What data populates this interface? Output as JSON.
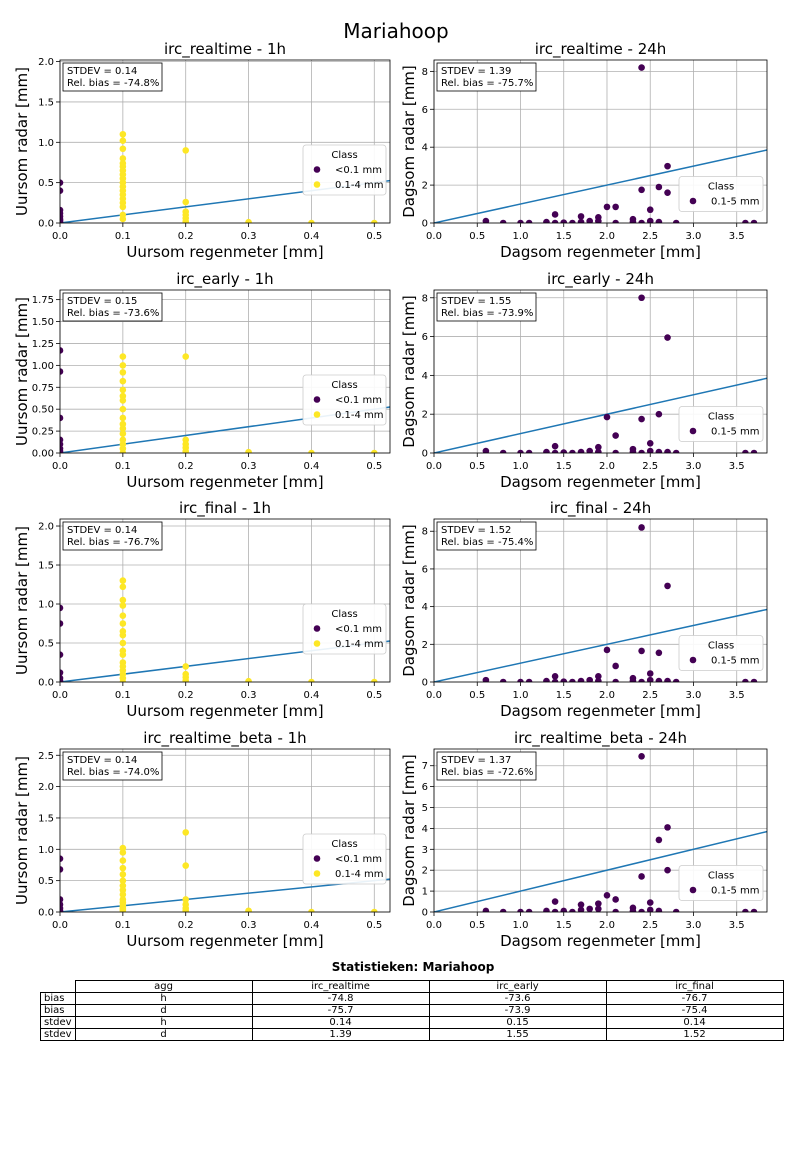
{
  "suptitle": "Mariahoop",
  "colors": {
    "low": "#440154",
    "high": "#fde725",
    "line": "#1f77b4",
    "grid": "#b0b0b0"
  },
  "chart_data": [
    {
      "type": "scatter",
      "title": "irc_realtime - 1h",
      "xlabel": "Uursom regenmeter [mm]",
      "ylabel": "Uursom radar [mm]",
      "xlim": [
        0,
        0.525
      ],
      "ylim": [
        0,
        2.02
      ],
      "xticks": [
        0.0,
        0.1,
        0.2,
        0.3,
        0.4,
        0.5
      ],
      "yticks": [
        0.0,
        0.5,
        1.0,
        1.5,
        2.0
      ],
      "tick_decimals": 1,
      "stats": [
        "STDEV = 0.14",
        "Rel. bias = -74.8%"
      ],
      "legend": {
        "title": "Class",
        "entries": [
          {
            "label": "<0.1 mm",
            "color": "#440154"
          },
          {
            "label": "0.1-4 mm",
            "color": "#fde725"
          }
        ],
        "position": "center-right"
      },
      "fit_line": [
        [
          0,
          0
        ],
        [
          0.525,
          0.525
        ]
      ],
      "series": [
        {
          "name": "<0.1 mm",
          "color": "#440154",
          "x": [
            0,
            0,
            0,
            0,
            0,
            0,
            0,
            0,
            0
          ],
          "y": [
            0.5,
            0.4,
            0.16,
            0.12,
            0.08,
            0.05,
            0.03,
            0.01,
            0.0
          ]
        },
        {
          "name": "0.1-4 mm",
          "color": "#fde725",
          "x": [
            0.1,
            0.1,
            0.1,
            0.1,
            0.1,
            0.1,
            0.1,
            0.1,
            0.1,
            0.1,
            0.1,
            0.1,
            0.1,
            0.1,
            0.1,
            0.1,
            0.1,
            0.1,
            0.2,
            0.2,
            0.2,
            0.2,
            0.2,
            0.2,
            0.3,
            0.4,
            0.5
          ],
          "y": [
            1.1,
            1.02,
            0.92,
            0.8,
            0.74,
            0.7,
            0.65,
            0.6,
            0.55,
            0.5,
            0.45,
            0.4,
            0.35,
            0.3,
            0.25,
            0.2,
            0.1,
            0.05,
            0.9,
            0.26,
            0.14,
            0.1,
            0.06,
            0.02,
            0.01,
            0.0,
            0.0
          ]
        }
      ]
    },
    {
      "type": "scatter",
      "title": "irc_realtime - 24h",
      "xlabel": "Dagsom regenmeter [mm]",
      "ylabel": "Dagsom radar [mm]",
      "xlim": [
        0,
        3.85
      ],
      "ylim": [
        0,
        8.6
      ],
      "xticks": [
        0.0,
        0.5,
        1.0,
        1.5,
        2.0,
        2.5,
        3.0,
        3.5
      ],
      "yticks": [
        0,
        2,
        4,
        6,
        8
      ],
      "tick_decimals": 1,
      "ytick_decimals": 0,
      "stats": [
        "STDEV = 1.39",
        "Rel. bias = -75.7%"
      ],
      "legend": {
        "title": "Class",
        "entries": [
          {
            "label": "0.1-5 mm",
            "color": "#440154"
          }
        ],
        "position": "center-right"
      },
      "fit_line": [
        [
          0,
          0
        ],
        [
          3.85,
          3.85
        ]
      ],
      "series": [
        {
          "name": "0.1-5 mm",
          "color": "#440154",
          "x": [
            0.6,
            0.8,
            1.0,
            1.1,
            1.3,
            1.4,
            1.4,
            1.5,
            1.6,
            1.7,
            1.7,
            1.8,
            1.9,
            1.9,
            2.0,
            2.1,
            2.1,
            2.3,
            2.3,
            2.4,
            2.4,
            2.4,
            2.5,
            2.5,
            2.6,
            2.6,
            2.7,
            2.7,
            2.8,
            3.6,
            3.7
          ],
          "y": [
            0.1,
            0.0,
            0.0,
            0.0,
            0.05,
            0.45,
            0.0,
            0.02,
            0.0,
            0.35,
            0.05,
            0.1,
            0.3,
            0.1,
            0.85,
            0.85,
            0.0,
            0.2,
            0.05,
            8.2,
            1.75,
            0.0,
            0.7,
            0.1,
            1.9,
            0.05,
            3.0,
            1.6,
            0.0,
            0.0,
            0.0
          ]
        }
      ]
    },
    {
      "type": "scatter",
      "title": "irc_early - 1h",
      "xlabel": "Uursom regenmeter [mm]",
      "ylabel": "Uursom radar [mm]",
      "xlim": [
        0,
        0.525
      ],
      "ylim": [
        0,
        1.86
      ],
      "xticks": [
        0.0,
        0.1,
        0.2,
        0.3,
        0.4,
        0.5
      ],
      "yticks": [
        0.0,
        0.25,
        0.5,
        0.75,
        1.0,
        1.25,
        1.5,
        1.75
      ],
      "tick_decimals": 1,
      "ytick_decimals": 2,
      "stats": [
        "STDEV = 0.15",
        "Rel. bias = -73.6%"
      ],
      "legend": {
        "title": "Class",
        "entries": [
          {
            "label": "<0.1 mm",
            "color": "#440154"
          },
          {
            "label": "0.1-4 mm",
            "color": "#fde725"
          }
        ],
        "position": "center-right"
      },
      "fit_line": [
        [
          0,
          0
        ],
        [
          0.525,
          0.525
        ]
      ],
      "series": [
        {
          "name": "<0.1 mm",
          "color": "#440154",
          "x": [
            0,
            0,
            0,
            0,
            0,
            0,
            0,
            0
          ],
          "y": [
            1.17,
            0.93,
            0.4,
            0.15,
            0.1,
            0.05,
            0.02,
            0.0
          ]
        },
        {
          "name": "0.1-4 mm",
          "color": "#fde725",
          "x": [
            0.1,
            0.1,
            0.1,
            0.1,
            0.1,
            0.1,
            0.1,
            0.1,
            0.1,
            0.1,
            0.1,
            0.1,
            0.1,
            0.1,
            0.1,
            0.1,
            0.2,
            0.2,
            0.2,
            0.2,
            0.2,
            0.3,
            0.4,
            0.5
          ],
          "y": [
            1.1,
            1.0,
            0.92,
            0.82,
            0.72,
            0.65,
            0.6,
            0.5,
            0.4,
            0.33,
            0.28,
            0.22,
            0.15,
            0.1,
            0.05,
            0.0,
            1.1,
            0.15,
            0.1,
            0.06,
            0.02,
            0.01,
            0.0,
            0.0
          ]
        }
      ]
    },
    {
      "type": "scatter",
      "title": "irc_early - 24h",
      "xlabel": "Dagsom regenmeter [mm]",
      "ylabel": "Dagsom radar [mm]",
      "xlim": [
        0,
        3.85
      ],
      "ylim": [
        0,
        8.4
      ],
      "xticks": [
        0.0,
        0.5,
        1.0,
        1.5,
        2.0,
        2.5,
        3.0,
        3.5
      ],
      "yticks": [
        0,
        2,
        4,
        6,
        8
      ],
      "tick_decimals": 1,
      "ytick_decimals": 0,
      "stats": [
        "STDEV = 1.55",
        "Rel. bias = -73.9%"
      ],
      "legend": {
        "title": "Class",
        "entries": [
          {
            "label": "0.1-5 mm",
            "color": "#440154"
          }
        ],
        "position": "center-right"
      },
      "fit_line": [
        [
          0,
          0
        ],
        [
          3.85,
          3.85
        ]
      ],
      "series": [
        {
          "name": "0.1-5 mm",
          "color": "#440154",
          "x": [
            0.6,
            0.8,
            1.0,
            1.1,
            1.3,
            1.4,
            1.4,
            1.5,
            1.6,
            1.7,
            1.8,
            1.9,
            1.9,
            2.0,
            2.1,
            2.1,
            2.3,
            2.3,
            2.4,
            2.4,
            2.4,
            2.5,
            2.5,
            2.6,
            2.6,
            2.7,
            2.7,
            2.8,
            3.6,
            3.7
          ],
          "y": [
            0.1,
            0.0,
            0.0,
            0.0,
            0.05,
            0.35,
            0.0,
            0.02,
            0.0,
            0.05,
            0.1,
            0.3,
            0.05,
            1.85,
            0.9,
            0.0,
            0.2,
            0.05,
            8.0,
            1.75,
            0.0,
            0.5,
            0.1,
            2.0,
            0.05,
            5.95,
            0.05,
            0.0,
            0.0,
            0.0
          ]
        }
      ]
    },
    {
      "type": "scatter",
      "title": "irc_final - 1h",
      "xlabel": "Uursom regenmeter [mm]",
      "ylabel": "Uursom radar [mm]",
      "xlim": [
        0,
        0.525
      ],
      "ylim": [
        0,
        2.09
      ],
      "xticks": [
        0.0,
        0.1,
        0.2,
        0.3,
        0.4,
        0.5
      ],
      "yticks": [
        0.0,
        0.5,
        1.0,
        1.5,
        2.0
      ],
      "tick_decimals": 1,
      "stats": [
        "STDEV = 0.14",
        "Rel. bias = -76.7%"
      ],
      "legend": {
        "title": "Class",
        "entries": [
          {
            "label": "<0.1 mm",
            "color": "#440154"
          },
          {
            "label": "0.1-4 mm",
            "color": "#fde725"
          }
        ],
        "position": "center-right"
      },
      "fit_line": [
        [
          0,
          0
        ],
        [
          0.525,
          0.525
        ]
      ],
      "series": [
        {
          "name": "<0.1 mm",
          "color": "#440154",
          "x": [
            0,
            0,
            0,
            0,
            0,
            0,
            0
          ],
          "y": [
            0.95,
            0.75,
            0.35,
            0.12,
            0.05,
            0.02,
            0.0
          ]
        },
        {
          "name": "0.1-4 mm",
          "color": "#fde725",
          "x": [
            0.1,
            0.1,
            0.1,
            0.1,
            0.1,
            0.1,
            0.1,
            0.1,
            0.1,
            0.1,
            0.1,
            0.1,
            0.1,
            0.1,
            0.1,
            0.1,
            0.1,
            0.2,
            0.2,
            0.2,
            0.2,
            0.3,
            0.4,
            0.5
          ],
          "y": [
            1.3,
            1.22,
            1.05,
            0.98,
            0.85,
            0.75,
            0.65,
            0.6,
            0.5,
            0.4,
            0.35,
            0.25,
            0.2,
            0.15,
            0.1,
            0.05,
            0.0,
            0.2,
            0.1,
            0.06,
            0.02,
            0.01,
            0.0,
            0.0
          ]
        }
      ]
    },
    {
      "type": "scatter",
      "title": "irc_final - 24h",
      "xlabel": "Dagsom regenmeter [mm]",
      "ylabel": "Dagsom radar [mm]",
      "xlim": [
        0,
        3.85
      ],
      "ylim": [
        0,
        8.65
      ],
      "xticks": [
        0.0,
        0.5,
        1.0,
        1.5,
        2.0,
        2.5,
        3.0,
        3.5
      ],
      "yticks": [
        0,
        2,
        4,
        6,
        8
      ],
      "tick_decimals": 1,
      "ytick_decimals": 0,
      "stats": [
        "STDEV = 1.52",
        "Rel. bias = -75.4%"
      ],
      "legend": {
        "title": "Class",
        "entries": [
          {
            "label": "0.1-5 mm",
            "color": "#440154"
          }
        ],
        "position": "center-right"
      },
      "fit_line": [
        [
          0,
          0
        ],
        [
          3.85,
          3.85
        ]
      ],
      "series": [
        {
          "name": "0.1-5 mm",
          "color": "#440154",
          "x": [
            0.6,
            0.8,
            1.0,
            1.1,
            1.3,
            1.4,
            1.4,
            1.5,
            1.6,
            1.7,
            1.8,
            1.9,
            1.9,
            2.0,
            2.1,
            2.1,
            2.3,
            2.3,
            2.4,
            2.4,
            2.4,
            2.5,
            2.5,
            2.6,
            2.6,
            2.7,
            2.7,
            2.8,
            3.6,
            3.7
          ],
          "y": [
            0.1,
            0.0,
            0.0,
            0.0,
            0.05,
            0.3,
            0.0,
            0.02,
            0.0,
            0.05,
            0.1,
            0.3,
            0.05,
            1.7,
            0.85,
            0.0,
            0.2,
            0.05,
            8.2,
            1.65,
            0.0,
            0.45,
            0.1,
            1.55,
            0.05,
            5.1,
            0.05,
            0.0,
            0.0,
            0.0
          ]
        }
      ]
    },
    {
      "type": "scatter",
      "title": "irc_realtime_beta - 1h",
      "xlabel": "Uursom regenmeter [mm]",
      "ylabel": "Uursom radar [mm]",
      "xlim": [
        0,
        0.525
      ],
      "ylim": [
        0,
        2.6
      ],
      "xticks": [
        0.0,
        0.1,
        0.2,
        0.3,
        0.4,
        0.5
      ],
      "yticks": [
        0.0,
        0.5,
        1.0,
        1.5,
        2.0,
        2.5
      ],
      "tick_decimals": 1,
      "stats": [
        "STDEV = 0.14",
        "Rel. bias = -74.0%"
      ],
      "legend": {
        "title": "Class",
        "entries": [
          {
            "label": "<0.1 mm",
            "color": "#440154"
          },
          {
            "label": "0.1-4 mm",
            "color": "#fde725"
          }
        ],
        "position": "center-right"
      },
      "fit_line": [
        [
          0,
          0
        ],
        [
          0.525,
          0.525
        ]
      ],
      "series": [
        {
          "name": "<0.1 mm",
          "color": "#440154",
          "x": [
            0,
            0,
            0,
            0,
            0,
            0,
            0
          ],
          "y": [
            0.85,
            0.68,
            0.2,
            0.12,
            0.06,
            0.02,
            0.0
          ]
        },
        {
          "name": "0.1-4 mm",
          "color": "#fde725",
          "x": [
            0.1,
            0.1,
            0.1,
            0.1,
            0.1,
            0.1,
            0.1,
            0.1,
            0.1,
            0.1,
            0.1,
            0.1,
            0.1,
            0.1,
            0.1,
            0.2,
            0.2,
            0.2,
            0.2,
            0.2,
            0.2,
            0.3,
            0.3,
            0.4,
            0.5
          ],
          "y": [
            1.02,
            0.95,
            0.82,
            0.7,
            0.6,
            0.5,
            0.42,
            0.35,
            0.28,
            0.2,
            0.15,
            0.1,
            0.06,
            0.03,
            0.0,
            1.27,
            0.74,
            0.2,
            0.12,
            0.06,
            0.02,
            0.02,
            0.01,
            0.0,
            0.0
          ]
        }
      ]
    },
    {
      "type": "scatter",
      "title": "irc_realtime_beta - 24h",
      "xlabel": "Dagsom regenmeter [mm]",
      "ylabel": "Dagsom radar [mm]",
      "xlim": [
        0,
        3.85
      ],
      "ylim": [
        0,
        7.8
      ],
      "xticks": [
        0.0,
        0.5,
        1.0,
        1.5,
        2.0,
        2.5,
        3.0,
        3.5
      ],
      "yticks": [
        0,
        1,
        2,
        3,
        4,
        5,
        6,
        7
      ],
      "tick_decimals": 1,
      "ytick_decimals": 0,
      "stats": [
        "STDEV = 1.37",
        "Rel. bias = -72.6%"
      ],
      "legend": {
        "title": "Class",
        "entries": [
          {
            "label": "0.1-5 mm",
            "color": "#440154"
          }
        ],
        "position": "center-right"
      },
      "fit_line": [
        [
          0,
          0
        ],
        [
          3.85,
          3.85
        ]
      ],
      "series": [
        {
          "name": "0.1-5 mm",
          "color": "#440154",
          "x": [
            0.6,
            0.8,
            1.0,
            1.1,
            1.3,
            1.4,
            1.4,
            1.5,
            1.6,
            1.7,
            1.7,
            1.8,
            1.9,
            1.9,
            2.0,
            2.1,
            2.1,
            2.3,
            2.3,
            2.4,
            2.4,
            2.4,
            2.5,
            2.5,
            2.6,
            2.6,
            2.7,
            2.7,
            2.8,
            3.6,
            3.7
          ],
          "y": [
            0.05,
            0.0,
            0.0,
            0.0,
            0.05,
            0.5,
            0.0,
            0.05,
            0.0,
            0.35,
            0.1,
            0.15,
            0.4,
            0.15,
            0.8,
            0.6,
            0.0,
            0.2,
            0.05,
            7.45,
            1.7,
            0.0,
            0.45,
            0.1,
            3.45,
            0.05,
            4.05,
            2.0,
            0.0,
            0.0,
            0.0
          ]
        }
      ]
    }
  ],
  "stats_table": {
    "title": "Statistieken: Mariahoop",
    "headers": [
      "agg",
      "irc_realtime",
      "irc_early",
      "irc_final"
    ],
    "rows": [
      {
        "label": "bias",
        "cells": [
          "h",
          "-74.8",
          "-73.6",
          "-76.7"
        ]
      },
      {
        "label": "bias",
        "cells": [
          "d",
          "-75.7",
          "-73.9",
          "-75.4"
        ]
      },
      {
        "label": "stdev",
        "cells": [
          "h",
          "0.14",
          "0.15",
          "0.14"
        ]
      },
      {
        "label": "stdev",
        "cells": [
          "d",
          "1.39",
          "1.55",
          "1.52"
        ]
      }
    ]
  }
}
